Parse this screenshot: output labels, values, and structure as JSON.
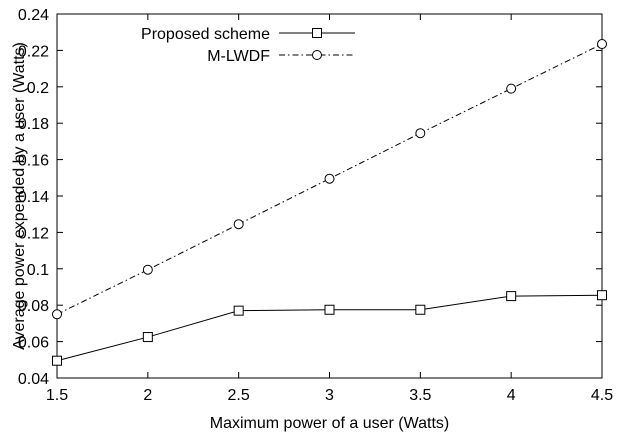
{
  "chart_data": {
    "type": "line",
    "title": "",
    "xlabel": "Maximum power of a user (Watts)",
    "ylabel": "Average power expended by a user (Watts)",
    "xlim": [
      1.5,
      4.5
    ],
    "ylim": [
      0.04,
      0.24
    ],
    "xticks": [
      "1.5",
      "2",
      "2.5",
      "3",
      "3.5",
      "4",
      "4.5"
    ],
    "yticks": [
      "0.04",
      "0.06",
      "0.08",
      "0.1",
      "0.12",
      "0.14",
      "0.16",
      "0.18",
      "0.2",
      "0.22",
      "0.24"
    ],
    "grid": false,
    "legend_position": "top-left",
    "x": [
      1.5,
      2,
      2.5,
      3,
      3.5,
      4,
      4.5
    ],
    "series": [
      {
        "name": "Proposed scheme",
        "marker": "square",
        "line_style": "solid",
        "color": "#000000",
        "values": [
          0.0495,
          0.0625,
          0.077,
          0.0775,
          0.0775,
          0.085,
          0.0855
        ]
      },
      {
        "name": "M-LWDF",
        "marker": "circle",
        "line_style": "dash-dot",
        "color": "#000000",
        "values": [
          0.075,
          0.0995,
          0.1245,
          0.1495,
          0.1745,
          0.199,
          0.2235
        ]
      }
    ]
  }
}
